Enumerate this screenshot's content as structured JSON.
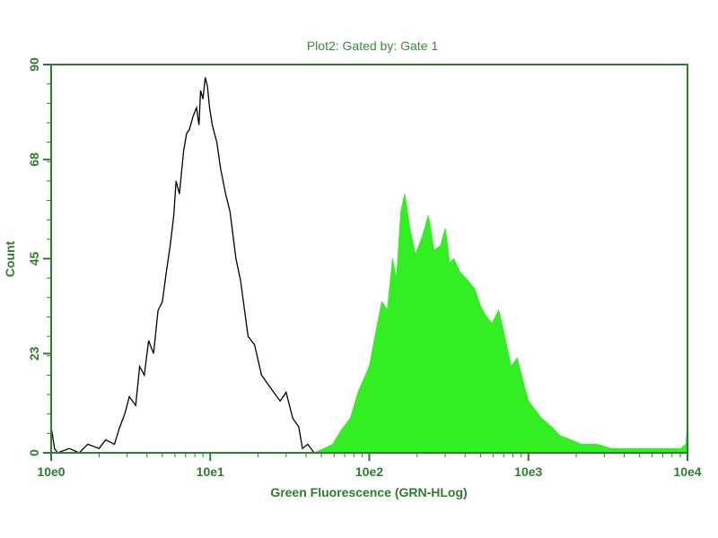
{
  "chart_data": {
    "type": "area",
    "title": "Plot2:  Gated by: Gate 1",
    "xlabel": "Green Fluorescence (GRN-HLog)",
    "ylabel": "Count",
    "x_scale": "log",
    "xlim": [
      1,
      10000
    ],
    "ylim": [
      0,
      90
    ],
    "x_ticks": [
      1,
      10,
      100,
      1000,
      10000
    ],
    "x_tick_labels": [
      "10e0",
      "10e1",
      "10e2",
      "10e3",
      "10e4"
    ],
    "y_ticks": [
      0,
      23,
      45,
      68,
      90
    ],
    "y_tick_labels": [
      "0",
      "23",
      "45",
      "68",
      "90"
    ],
    "grid": false,
    "colors": {
      "axis": "#2e7d2e",
      "control": "#000000",
      "stained": "#33ee22"
    },
    "series": [
      {
        "style": "line",
        "color": "#000000",
        "x": [
          1.0,
          1.05,
          1.1,
          1.3,
          1.5,
          1.7,
          2.0,
          2.2,
          2.5,
          2.7,
          2.9,
          3.1,
          3.4,
          3.6,
          3.85,
          4.1,
          4.4,
          4.7,
          5.0,
          5.3,
          5.6,
          5.9,
          6.1,
          6.4,
          6.8,
          7.1,
          7.4,
          7.8,
          8.2,
          8.5,
          8.7,
          9.0,
          9.3,
          9.6,
          9.9,
          10.3,
          11.0,
          11.6,
          12.5,
          13.3,
          14.5,
          15.5,
          17.3,
          19.0,
          21.0,
          24.0,
          27.5,
          30.0,
          33.0,
          36.0,
          38.0,
          41.0,
          45.0
        ],
        "y": [
          6,
          1,
          0,
          1,
          0,
          2,
          1,
          3,
          2,
          6,
          9,
          13,
          11,
          20,
          18,
          26,
          23,
          33,
          35,
          42,
          48,
          55,
          63,
          60,
          70,
          74,
          75,
          78,
          80,
          76,
          84,
          82,
          87,
          85,
          80,
          76,
          72,
          66,
          60,
          56,
          45,
          40,
          27,
          25,
          18,
          15,
          12,
          14,
          8,
          6,
          1,
          2,
          0
        ]
      },
      {
        "style": "filled",
        "color": "#33ee22",
        "x": [
          45,
          52,
          59,
          66,
          76,
          85,
          92,
          100,
          110,
          120,
          130,
          140,
          148,
          158,
          167,
          180,
          195,
          215,
          235,
          255,
          280,
          300,
          320,
          340,
          370,
          415,
          460,
          500,
          535,
          590,
          650,
          700,
          780,
          850,
          920,
          1000,
          1100,
          1210,
          1400,
          1580,
          1850,
          2150,
          2700,
          3300,
          4100,
          5200,
          6500,
          8000,
          9100,
          9800,
          10000
        ],
        "y": [
          0,
          1,
          2,
          5,
          8,
          14,
          17,
          20,
          28,
          35,
          33,
          45,
          40,
          56,
          60,
          52,
          46,
          50,
          55,
          47,
          48,
          52,
          44,
          45,
          42,
          40,
          38,
          34,
          32,
          30,
          33,
          28,
          20,
          22,
          17,
          12,
          10,
          8,
          6,
          4,
          3,
          2,
          2,
          1,
          1,
          1,
          1,
          1,
          1,
          2,
          7
        ]
      }
    ]
  }
}
